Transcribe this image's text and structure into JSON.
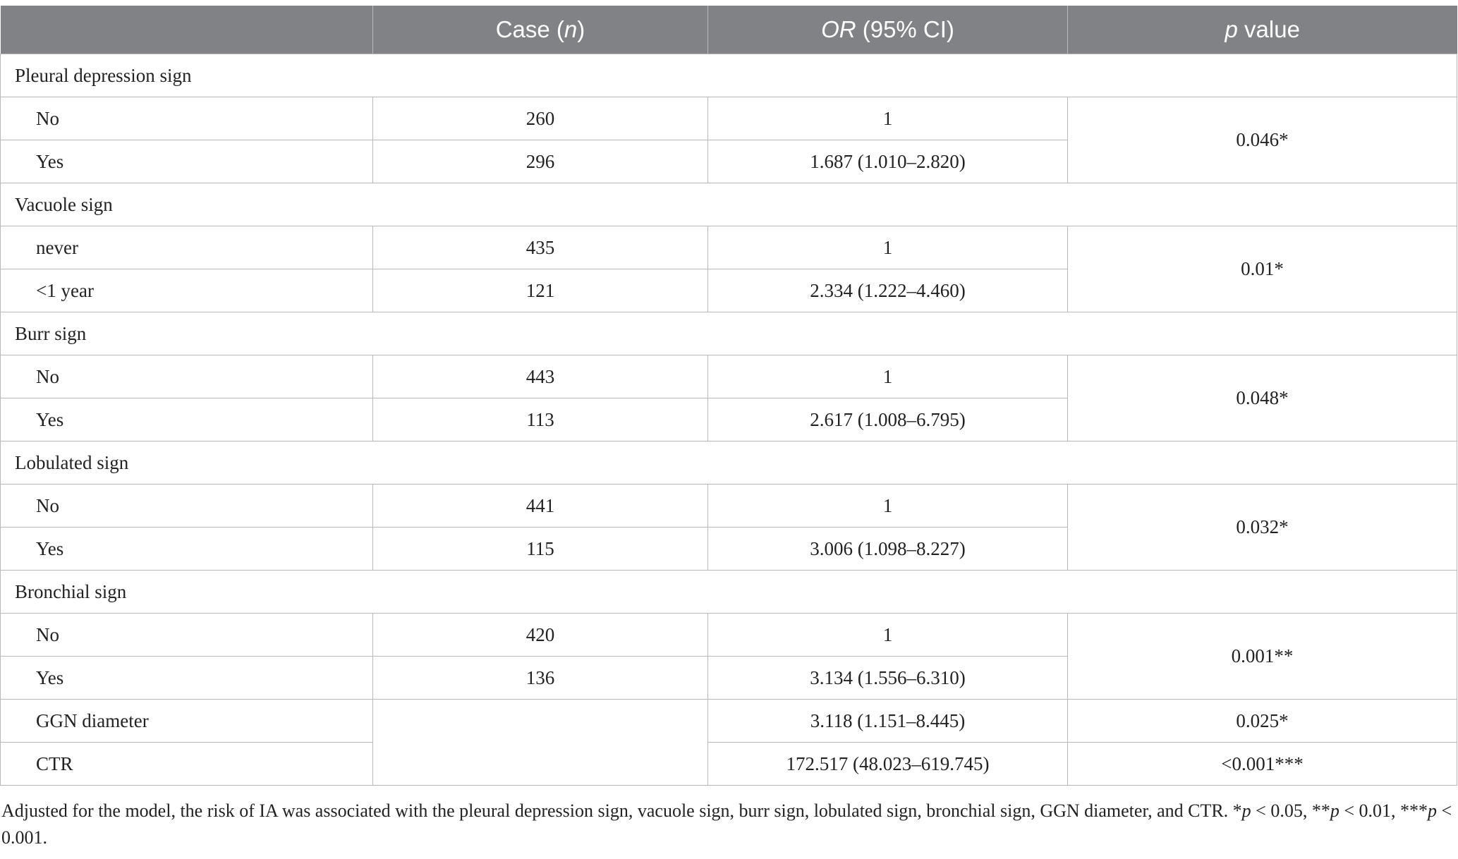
{
  "table": {
    "header": {
      "col0": "",
      "case_main": "Case (",
      "case_italic": "n",
      "case_end": ")",
      "or_italic": "OR",
      "or_rest": " (95% CI)",
      "p_italic": "p",
      "p_rest": " value"
    },
    "groups": [
      {
        "title": "Pleural depression sign",
        "rows": [
          {
            "label": "No",
            "case": "260",
            "or": "1"
          },
          {
            "label": "Yes",
            "case": "296",
            "or": "1.687 (1.010–2.820)"
          }
        ],
        "p": "0.046*"
      },
      {
        "title": "Vacuole sign",
        "rows": [
          {
            "label": "never",
            "case": "435",
            "or": "1"
          },
          {
            "label": "<1 year",
            "case": "121",
            "or": "2.334 (1.222–4.460)"
          }
        ],
        "p": "0.01*"
      },
      {
        "title": "Burr sign",
        "rows": [
          {
            "label": "No",
            "case": "443",
            "or": "1"
          },
          {
            "label": "Yes",
            "case": "113",
            "or": "2.617 (1.008–6.795)"
          }
        ],
        "p": "0.048*"
      },
      {
        "title": "Lobulated sign",
        "rows": [
          {
            "label": "No",
            "case": "441",
            "or": "1"
          },
          {
            "label": "Yes",
            "case": "115",
            "or": "3.006 (1.098–8.227)"
          }
        ],
        "p": "0.032*"
      },
      {
        "title": "Bronchial sign",
        "rows": [
          {
            "label": "No",
            "case": "420",
            "or": "1"
          },
          {
            "label": "Yes",
            "case": "136",
            "or": "3.134 (1.556–6.310)"
          }
        ],
        "p": "0.001**"
      }
    ],
    "extra_rows": [
      {
        "label": "GGN diameter",
        "or": "3.118 (1.151–8.445)",
        "p": "0.025*"
      },
      {
        "label": "CTR",
        "or": "172.517 (48.023–619.745)",
        "p": "<0.001***"
      }
    ]
  },
  "footnote": {
    "main": "Adjusted for the model, the risk of IA was associated with the pleural depression sign, vacuole sign, burr sign, lobulated sign, bronchial sign, GGN diameter, and CTR. ",
    "sig1_star": "*",
    "sig1_p": "p",
    "sig1_rest": " < 0.05, ",
    "sig2_star": "**",
    "sig2_p": "p",
    "sig2_rest": " < 0.01, ",
    "sig3_star": "***",
    "sig3_p": "p",
    "sig3_rest": " < 0.001."
  }
}
